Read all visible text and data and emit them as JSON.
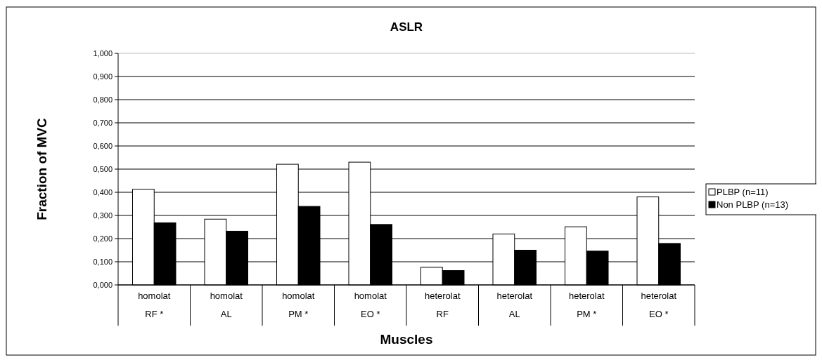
{
  "chart_data": {
    "type": "bar",
    "title": "ASLR",
    "xlabel": "Muscles",
    "ylabel": "Fraction of MVC",
    "categories": [
      "homolat\nRF *",
      "homolat\nAL",
      "homolat\nPM *",
      "homolat\nEO *",
      "heterolat\nRF",
      "heterolat\nAL",
      "heterolat\nPM *",
      "heterolat\nEO *"
    ],
    "series": [
      {
        "name": "PLBP (n=11)",
        "color": "#ffffff",
        "values": [
          0.413,
          0.284,
          0.521,
          0.53,
          0.076,
          0.22,
          0.251,
          0.38
        ]
      },
      {
        "name": "Non PLBP (n=13)",
        "color": "#000000",
        "values": [
          0.268,
          0.232,
          0.339,
          0.261,
          0.062,
          0.15,
          0.146,
          0.179
        ]
      }
    ],
    "ylim": [
      0,
      1
    ],
    "yticks": [
      {
        "value": 0,
        "label": "0,000"
      },
      {
        "value": 0.1,
        "label": "0,100"
      },
      {
        "value": 0.2,
        "label": "0,200"
      },
      {
        "value": 0.3,
        "label": "0,300"
      },
      {
        "value": 0.4,
        "label": "0,400"
      },
      {
        "value": 0.5,
        "label": "0,500"
      },
      {
        "value": 0.6,
        "label": "0,600"
      },
      {
        "value": 0.7,
        "label": "0,700"
      },
      {
        "value": 0.8,
        "label": "0,800"
      },
      {
        "value": 0.9,
        "label": "0,900"
      },
      {
        "value": 1,
        "label": "1,000"
      }
    ],
    "grid": "y",
    "legend": "right"
  }
}
